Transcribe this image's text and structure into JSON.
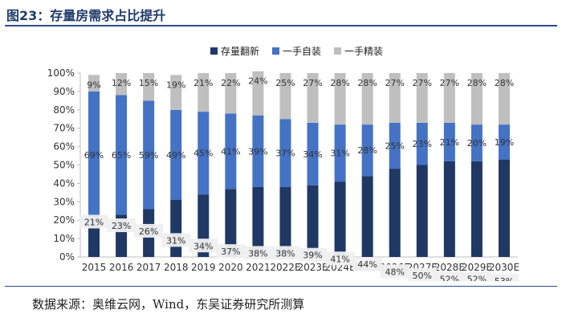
{
  "title": "图23：存量房需求占比提升",
  "source": "数据来源：奥维云网，Wind，东吴证券研究所测算",
  "chart_data": {
    "type": "bar",
    "stacked": true,
    "percent": true,
    "categories": [
      "2015",
      "2016",
      "2017",
      "2018",
      "2019",
      "2020",
      "2021",
      "2022E",
      "2023E",
      "2024E",
      "2025E",
      "2026E",
      "2027E",
      "2028E",
      "2029E",
      "2030E"
    ],
    "series": [
      {
        "name": "存量翻新",
        "color": "#1f3864",
        "values": [
          21,
          23,
          26,
          31,
          34,
          37,
          38,
          38,
          39,
          41,
          44,
          48,
          50,
          52,
          52,
          53
        ],
        "labels": [
          "21%",
          "23%",
          "26%",
          "31%",
          "34%",
          "37%",
          "38%",
          "38%",
          "39%",
          "41%",
          "44%",
          "48%",
          "50%",
          "52%",
          "52%",
          "53%"
        ]
      },
      {
        "name": "一手自装",
        "color": "#4472c4",
        "values": [
          69,
          65,
          59,
          49,
          45,
          41,
          39,
          37,
          34,
          31,
          28,
          25,
          23,
          21,
          20,
          19
        ],
        "labels": [
          "69%",
          "65%",
          "59%",
          "49%",
          "45%",
          "41%",
          "39%",
          "37%",
          "34%",
          "31%",
          "28%",
          "25%",
          "23%",
          "21%",
          "20%",
          "19%"
        ]
      },
      {
        "name": "一手精装",
        "color": "#bfbfbf",
        "values": [
          9,
          12,
          15,
          19,
          21,
          22,
          24,
          25,
          27,
          28,
          28,
          27,
          27,
          27,
          28,
          28
        ],
        "labels": [
          "9%",
          "12%",
          "15%",
          "19%",
          "21%",
          "22%",
          "24%",
          "25%",
          "27%",
          "28%",
          "28%",
          "27%",
          "27%",
          "27%",
          "28%",
          "28%"
        ]
      }
    ],
    "ylim": [
      0,
      100
    ],
    "yticks": [
      "0%",
      "10%",
      "20%",
      "30%",
      "40%",
      "50%",
      "60%",
      "70%",
      "80%",
      "90%",
      "100%"
    ],
    "legend_position": "top-right",
    "grid": false
  }
}
